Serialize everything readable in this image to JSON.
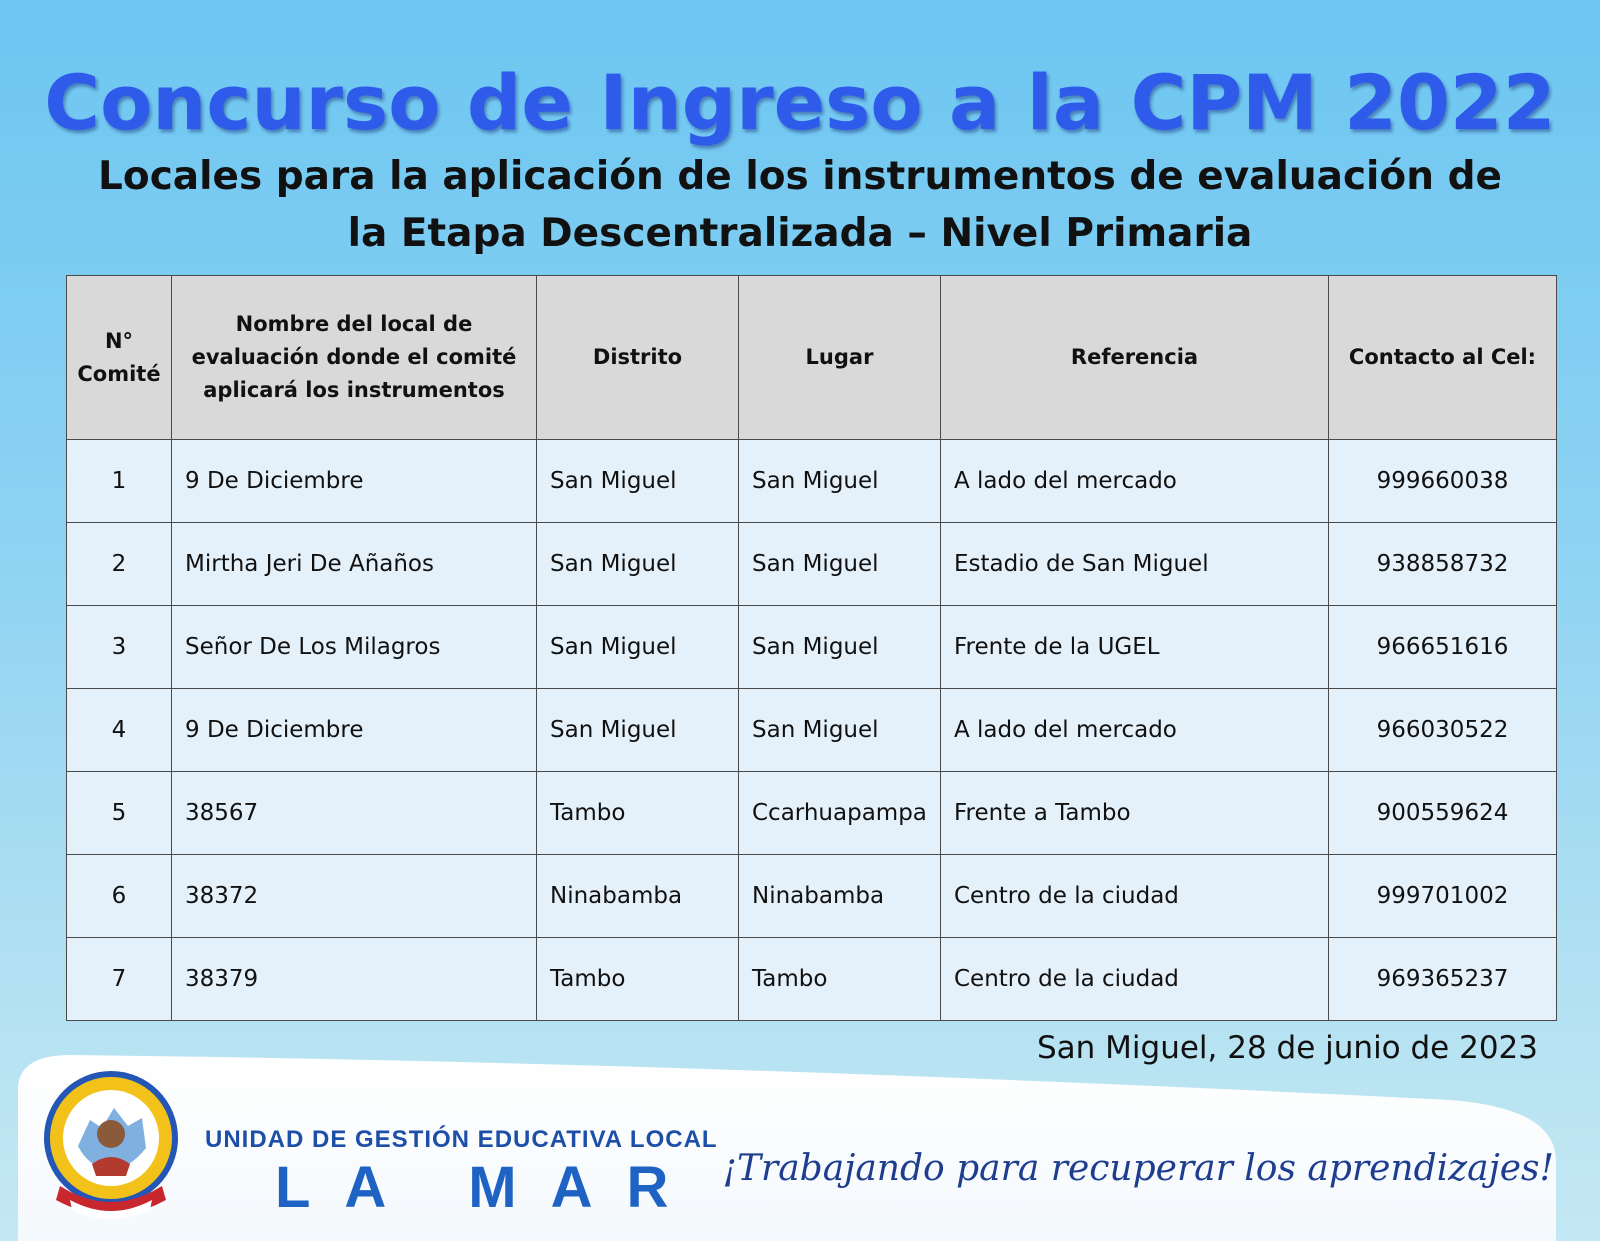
{
  "header": {
    "title": "Concurso de Ingreso a la CPM 2022",
    "subtitle_line1": "Locales para la aplicación de los instrumentos de evaluación de",
    "subtitle_line2": "la Etapa Descentralizada – Nivel Primaria"
  },
  "table": {
    "columns": {
      "comite_line1": "N°",
      "comite_line2": "Comité",
      "local": "Nombre del local de evaluación donde el comité aplicará los instrumentos",
      "distrito": "Distrito",
      "lugar": "Lugar",
      "referencia": "Referencia",
      "contacto": "Contacto al Cel:"
    },
    "rows": [
      {
        "n": "1",
        "local": "9 De Diciembre",
        "distrito": "San Miguel",
        "lugar": "San Miguel",
        "referencia": "A lado del mercado",
        "contacto": "999660038"
      },
      {
        "n": "2",
        "local": "Mirtha Jeri De Añaños",
        "distrito": "San Miguel",
        "lugar": "San Miguel",
        "referencia": "Estadio de San Miguel",
        "contacto": "938858732"
      },
      {
        "n": "3",
        "local": "Señor De Los Milagros",
        "distrito": "San Miguel",
        "lugar": "San Miguel",
        "referencia": "Frente de la UGEL",
        "contacto": "966651616"
      },
      {
        "n": "4",
        "local": "9 De Diciembre",
        "distrito": "San Miguel",
        "lugar": "San Miguel",
        "referencia": "A lado del mercado",
        "contacto": "966030522"
      },
      {
        "n": "5",
        "local": "38567",
        "distrito": "Tambo",
        "lugar": "Ccarhuapampa",
        "referencia": "Frente a Tambo",
        "contacto": "900559624"
      },
      {
        "n": "6",
        "local": "38372",
        "distrito": "Ninabamba",
        "lugar": "Ninabamba",
        "referencia": "Centro de la ciudad",
        "contacto": "999701002"
      },
      {
        "n": "7",
        "local": "38379",
        "distrito": "Tambo",
        "lugar": "Tambo",
        "referencia": "Centro de la ciudad",
        "contacto": "969365237"
      }
    ]
  },
  "date_line": "San Miguel, 28 de junio de 2023",
  "footer": {
    "seal_icon": "ugel-seal-icon",
    "org_line1": "UNIDAD DE GESTIÓN EDUCATIVA LOCAL",
    "org_line2": "LA MAR",
    "slogan": "¡Trabajando para recuperar los aprendizajes!"
  },
  "colors": {
    "title": "#2f5bea",
    "header_bg": "#d9d9d9",
    "cell_bg": "#e5f1fa",
    "org_blue": "#1e4fa8"
  }
}
